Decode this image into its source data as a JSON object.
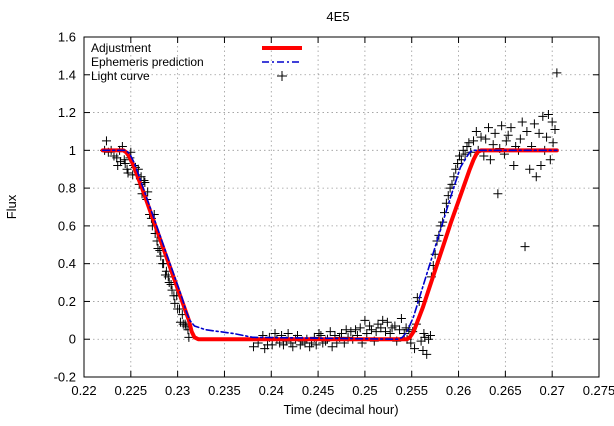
{
  "chart_data": {
    "type": "line",
    "title": "4E5",
    "xlabel": "Time (decimal hour)",
    "ylabel": "Flux",
    "xlim": [
      0.22,
      0.275
    ],
    "ylim": [
      -0.2,
      1.6
    ],
    "x_ticks": [
      "0.22",
      "0.225",
      "0.23",
      "0.235",
      "0.24",
      "0.245",
      "0.25",
      "0.255",
      "0.26",
      "0.265",
      "0.27",
      "0.275"
    ],
    "y_ticks": [
      "-0.2",
      "0",
      "0.2",
      "0.4",
      "0.6",
      "0.8",
      "1",
      "1.2",
      "1.4",
      "1.6"
    ],
    "grid": true,
    "legend_position": "top-left",
    "series": [
      {
        "name": "Adjustment",
        "style": "line",
        "color": "#ff0000",
        "x": [
          0.222,
          0.2242,
          0.2245,
          0.2248,
          0.2252,
          0.2262,
          0.2272,
          0.2282,
          0.2292,
          0.2302,
          0.2312,
          0.2315,
          0.2318,
          0.2322,
          0.2545,
          0.2548,
          0.2552,
          0.2562,
          0.2572,
          0.2582,
          0.2592,
          0.2602,
          0.2612,
          0.2616,
          0.262,
          0.2624,
          0.2705
        ],
        "y": [
          1.0,
          1.0,
          0.99,
          0.97,
          0.93,
          0.8,
          0.66,
          0.52,
          0.38,
          0.24,
          0.1,
          0.04,
          0.01,
          0.0,
          0.0,
          0.01,
          0.04,
          0.17,
          0.32,
          0.47,
          0.62,
          0.76,
          0.9,
          0.95,
          0.99,
          1.0,
          1.0
        ]
      },
      {
        "name": "Ephemeris prediction",
        "style": "dash-dot",
        "color": "#0000cc",
        "x": [
          0.222,
          0.2244,
          0.2247,
          0.225,
          0.2254,
          0.2264,
          0.2274,
          0.2284,
          0.2294,
          0.2304,
          0.2309,
          0.2313,
          0.2318,
          0.233,
          0.2345,
          0.236,
          0.238,
          0.2535,
          0.254,
          0.2545,
          0.2552,
          0.2562,
          0.2572,
          0.2582,
          0.2592,
          0.2602,
          0.2608,
          0.2612,
          0.2616,
          0.2705
        ],
        "y": [
          1.0,
          1.0,
          0.99,
          0.97,
          0.93,
          0.79,
          0.65,
          0.51,
          0.37,
          0.23,
          0.15,
          0.1,
          0.07,
          0.05,
          0.04,
          0.03,
          0.01,
          0.0,
          0.01,
          0.04,
          0.12,
          0.28,
          0.44,
          0.6,
          0.76,
          0.91,
          0.96,
          0.99,
          1.0,
          1.0
        ]
      },
      {
        "name": "Light curve",
        "style": "marker-plus",
        "color": "#000000",
        "points": [
          [
            0.2222,
            1.0
          ],
          [
            0.2224,
            1.05
          ],
          [
            0.2226,
            0.99
          ],
          [
            0.2229,
            1.0
          ],
          [
            0.2232,
            0.97
          ],
          [
            0.2235,
            0.96
          ],
          [
            0.2236,
            0.92
          ],
          [
            0.2238,
            1.0
          ],
          [
            0.2239,
            0.94
          ],
          [
            0.2241,
            1.02
          ],
          [
            0.2243,
            0.95
          ],
          [
            0.2244,
            0.93
          ],
          [
            0.2246,
            0.9
          ],
          [
            0.2247,
            0.88
          ],
          [
            0.2249,
            0.96
          ],
          [
            0.225,
            0.99
          ],
          [
            0.2252,
            0.87
          ],
          [
            0.2253,
            0.92
          ],
          [
            0.2255,
            0.91
          ],
          [
            0.2256,
            0.87
          ],
          [
            0.2258,
            0.9
          ],
          [
            0.2259,
            0.82
          ],
          [
            0.2261,
            0.86
          ],
          [
            0.2262,
            0.77
          ],
          [
            0.2264,
            0.84
          ],
          [
            0.2265,
            0.83
          ],
          [
            0.2267,
            0.74
          ],
          [
            0.2268,
            0.78
          ],
          [
            0.227,
            0.66
          ],
          [
            0.2272,
            0.64
          ],
          [
            0.2273,
            0.6
          ],
          [
            0.2275,
            0.66
          ],
          [
            0.2276,
            0.56
          ],
          [
            0.2278,
            0.52
          ],
          [
            0.2279,
            0.48
          ],
          [
            0.2281,
            0.47
          ],
          [
            0.2282,
            0.44
          ],
          [
            0.2284,
            0.4
          ],
          [
            0.2285,
            0.4
          ],
          [
            0.2287,
            0.34
          ],
          [
            0.2288,
            0.36
          ],
          [
            0.229,
            0.33
          ],
          [
            0.2291,
            0.3
          ],
          [
            0.2293,
            0.29
          ],
          [
            0.2294,
            0.26
          ],
          [
            0.2296,
            0.23
          ],
          [
            0.2297,
            0.19
          ],
          [
            0.2299,
            0.23
          ],
          [
            0.23,
            0.16
          ],
          [
            0.2302,
            0.16
          ],
          [
            0.2303,
            0.09
          ],
          [
            0.2305,
            0.13
          ],
          [
            0.2306,
            0.08
          ],
          [
            0.2308,
            0.08
          ],
          [
            0.2309,
            0.07
          ],
          [
            0.2311,
            0.05
          ],
          [
            0.2312,
            0.01
          ],
          [
            0.2381,
            -0.04
          ],
          [
            0.2386,
            -0.02
          ],
          [
            0.2391,
            0.02
          ],
          [
            0.2393,
            -0.05
          ],
          [
            0.2396,
            -0.03
          ],
          [
            0.2398,
            0.01
          ],
          [
            0.2401,
            -0.03
          ],
          [
            0.2404,
            0.03
          ],
          [
            0.2406,
            0.0
          ],
          [
            0.2409,
            -0.02
          ],
          [
            0.2411,
            0.02
          ],
          [
            0.2413,
            -0.03
          ],
          [
            0.2416,
            -0.01
          ],
          [
            0.2418,
            0.03
          ],
          [
            0.2421,
            -0.02
          ],
          [
            0.2423,
            -0.04
          ],
          [
            0.2426,
            0.0
          ],
          [
            0.2428,
            0.02
          ],
          [
            0.2431,
            -0.03
          ],
          [
            0.2433,
            -0.01
          ],
          [
            0.2436,
            -0.02
          ],
          [
            0.2438,
            0.0
          ],
          [
            0.2441,
            -0.04
          ],
          [
            0.2443,
            -0.02
          ],
          [
            0.2446,
            0.01
          ],
          [
            0.2448,
            -0.03
          ],
          [
            0.2451,
            0.03
          ],
          [
            0.2453,
            0.02
          ],
          [
            0.2455,
            -0.02
          ],
          [
            0.2458,
            -0.01
          ],
          [
            0.246,
            0.0
          ],
          [
            0.2463,
            0.04
          ],
          [
            0.2465,
            -0.04
          ],
          [
            0.2468,
            0.02
          ],
          [
            0.247,
            -0.02
          ],
          [
            0.2473,
            0.01
          ],
          [
            0.2475,
            0.03
          ],
          [
            0.2478,
            -0.02
          ],
          [
            0.248,
            0.05
          ],
          [
            0.2482,
            0.01
          ],
          [
            0.2485,
            0.04
          ],
          [
            0.2487,
            0.0
          ],
          [
            0.249,
            0.05
          ],
          [
            0.2492,
            0.02
          ],
          [
            0.2495,
            0.06
          ],
          [
            0.2497,
            -0.02
          ],
          [
            0.25,
            0.1
          ],
          [
            0.2502,
            0.03
          ],
          [
            0.2505,
            0.07
          ],
          [
            0.2507,
            0.05
          ],
          [
            0.251,
            -0.01
          ],
          [
            0.2512,
            0.04
          ],
          [
            0.2514,
            0.08
          ],
          [
            0.2517,
            0.06
          ],
          [
            0.2519,
            0.1
          ],
          [
            0.2522,
            0.04
          ],
          [
            0.2524,
            0.09
          ],
          [
            0.2527,
            0.03
          ],
          [
            0.2529,
            0.06
          ],
          [
            0.2532,
            0.07
          ],
          [
            0.2534,
            -0.01
          ],
          [
            0.2537,
            0.05
          ],
          [
            0.2539,
            0.11
          ],
          [
            0.2542,
            0.03
          ],
          [
            0.2544,
            0.06
          ],
          [
            0.2545,
            0.0
          ],
          [
            0.2547,
            0.05
          ],
          [
            0.2549,
            -0.02
          ],
          [
            0.2551,
            0.04
          ],
          [
            0.2553,
            -0.05
          ],
          [
            0.2555,
            0.08
          ],
          [
            0.2556,
            0.22
          ],
          [
            0.2558,
            0.2
          ],
          [
            0.256,
            -0.01
          ],
          [
            0.2562,
            -0.06
          ],
          [
            0.2563,
            0.03
          ],
          [
            0.2564,
            0.01
          ],
          [
            0.2566,
            -0.08
          ],
          [
            0.2568,
            0.0
          ],
          [
            0.257,
            0.02
          ],
          [
            0.2571,
            0.33
          ],
          [
            0.2573,
            0.39
          ],
          [
            0.2575,
            0.45
          ],
          [
            0.2577,
            0.52
          ],
          [
            0.2579,
            0.55
          ],
          [
            0.2581,
            0.6
          ],
          [
            0.2583,
            0.62
          ],
          [
            0.2585,
            0.67
          ],
          [
            0.2587,
            0.72
          ],
          [
            0.2589,
            0.76
          ],
          [
            0.2591,
            0.8
          ],
          [
            0.2593,
            0.82
          ],
          [
            0.2595,
            0.86
          ],
          [
            0.2597,
            0.9
          ],
          [
            0.2599,
            0.93
          ],
          [
            0.2601,
            0.97
          ],
          [
            0.2603,
            0.95
          ],
          [
            0.2605,
            1.0
          ],
          [
            0.2607,
            0.98
          ],
          [
            0.2609,
            1.02
          ],
          [
            0.2611,
            1.04
          ],
          [
            0.2613,
            0.99
          ],
          [
            0.2616,
            1.05
          ],
          [
            0.2619,
            1.1
          ],
          [
            0.2621,
            1.0
          ],
          [
            0.2624,
            1.07
          ],
          [
            0.2627,
            0.97
          ],
          [
            0.2629,
            1.06
          ],
          [
            0.2632,
            1.12
          ],
          [
            0.2634,
            0.95
          ],
          [
            0.2637,
            1.03
          ],
          [
            0.2639,
            1.09
          ],
          [
            0.2642,
            0.77
          ],
          [
            0.2644,
            1.01
          ],
          [
            0.2646,
            1.13
          ],
          [
            0.2649,
            0.98
          ],
          [
            0.2651,
            1.05
          ],
          [
            0.2653,
            1.08
          ],
          [
            0.2656,
            1.12
          ],
          [
            0.2659,
            0.92
          ],
          [
            0.2661,
            1.02
          ],
          [
            0.2664,
            1.0
          ],
          [
            0.2666,
            1.06
          ],
          [
            0.2668,
            1.15
          ],
          [
            0.2671,
            0.49
          ],
          [
            0.2673,
            1.1
          ],
          [
            0.2676,
            0.9
          ],
          [
            0.2678,
            1.02
          ],
          [
            0.2681,
            1.14
          ],
          [
            0.2683,
            0.86
          ],
          [
            0.2686,
            1.09
          ],
          [
            0.2688,
            0.92
          ],
          [
            0.269,
            1.18
          ],
          [
            0.2692,
            1.0
          ],
          [
            0.2694,
            1.07
          ],
          [
            0.2696,
            1.19
          ],
          [
            0.2698,
            0.95
          ],
          [
            0.27,
            1.15
          ],
          [
            0.2701,
            1.04
          ],
          [
            0.2703,
            1.11
          ],
          [
            0.2705,
            1.41
          ]
        ]
      }
    ]
  }
}
